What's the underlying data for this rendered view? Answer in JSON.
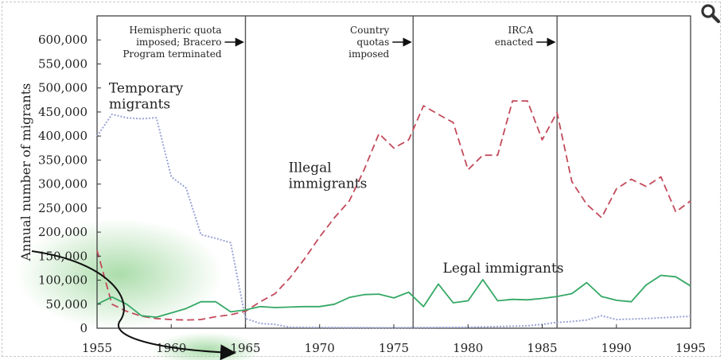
{
  "chart_data": {
    "type": "line",
    "title": "",
    "xlabel": "",
    "ylabel": "Annual number of migrants",
    "xlim": [
      1955,
      1995
    ],
    "ylim": [
      0,
      650000
    ],
    "x_ticks": [
      1955,
      1960,
      1965,
      1970,
      1975,
      1980,
      1985,
      1990,
      1995
    ],
    "y_ticks": [
      0,
      50000,
      100000,
      150000,
      200000,
      250000,
      300000,
      350000,
      400000,
      450000,
      500000,
      550000,
      600000
    ],
    "y_tick_labels": [
      "0",
      "50,000",
      "100,000",
      "150,000",
      "200,000",
      "250,000",
      "300,000",
      "350,000",
      "400,000",
      "450,000",
      "500,000",
      "550,000",
      "600,000"
    ],
    "grid": false,
    "series": [
      {
        "name": "Temporary migrants",
        "style": "dotted",
        "color": "#9aa3d6",
        "x": [
          1955,
          1956,
          1957,
          1958,
          1959,
          1960,
          1961,
          1962,
          1963,
          1964,
          1965,
          1966,
          1967,
          1968,
          1970,
          1975,
          1980,
          1984,
          1985,
          1986,
          1987,
          1988,
          1989,
          1990,
          1992,
          1995
        ],
        "y": [
          400000,
          445000,
          438000,
          436000,
          438000,
          315000,
          292000,
          195000,
          187000,
          178000,
          20000,
          10000,
          8000,
          2000,
          1500,
          1000,
          2000,
          5000,
          8000,
          12000,
          14000,
          17000,
          26000,
          18000,
          20000,
          25000
        ]
      },
      {
        "name": "Illegal immigrants",
        "style": "dashed",
        "color": "#c24a5a",
        "x": [
          1955,
          1956,
          1957,
          1958,
          1959,
          1960,
          1961,
          1962,
          1963,
          1964,
          1965,
          1966,
          1967,
          1968,
          1969,
          1970,
          1971,
          1972,
          1973,
          1974,
          1975,
          1976,
          1977,
          1978,
          1979,
          1980,
          1981,
          1982,
          1983,
          1984,
          1985,
          1986,
          1987,
          1988,
          1989,
          1990,
          1991,
          1992,
          1993,
          1994,
          1995
        ],
        "y": [
          162000,
          50000,
          35000,
          25000,
          20000,
          18000,
          17000,
          18000,
          24000,
          28000,
          35000,
          55000,
          72000,
          105000,
          145000,
          190000,
          230000,
          265000,
          330000,
          405000,
          375000,
          392000,
          463000,
          445000,
          428000,
          330000,
          360000,
          360000,
          473000,
          473000,
          392000,
          449000,
          305000,
          258000,
          230000,
          290000,
          310000,
          295000,
          315000,
          242000,
          265000
        ]
      },
      {
        "name": "Legal immigrants",
        "style": "solid",
        "color": "#35a865",
        "x": [
          1955,
          1956,
          1957,
          1958,
          1959,
          1960,
          1961,
          1962,
          1963,
          1964,
          1965,
          1966,
          1967,
          1968,
          1969,
          1970,
          1971,
          1972,
          1973,
          1974,
          1975,
          1976,
          1977,
          1978,
          1979,
          1980,
          1981,
          1982,
          1983,
          1984,
          1985,
          1986,
          1987,
          1988,
          1989,
          1990,
          1991,
          1992,
          1993,
          1994,
          1995
        ],
        "y": [
          50000,
          65000,
          50000,
          26000,
          23000,
          32000,
          41000,
          55000,
          55000,
          34000,
          38000,
          45000,
          43000,
          44000,
          45000,
          45000,
          50000,
          64000,
          70000,
          71000,
          63000,
          75000,
          45000,
          92000,
          53000,
          57000,
          101000,
          57000,
          60000,
          59000,
          62000,
          66000,
          72000,
          95000,
          66000,
          58000,
          55000,
          90000,
          110000,
          107000,
          88000
        ]
      }
    ],
    "series_labels": [
      {
        "lines": [
          "Temporary",
          "migrants"
        ],
        "x": 1955.8,
        "y": 490000
      },
      {
        "lines": [
          "Illegal",
          "immigrants"
        ],
        "x": 1967.9,
        "y": 325000
      },
      {
        "lines": [
          "Legal immigrants"
        ],
        "x": 1978.3,
        "y": 116000
      }
    ],
    "events": [
      {
        "x": 1965,
        "lines": [
          "Hemispheric quota",
          "imposed; Bracero",
          "Program terminated"
        ],
        "arrow_line": 1
      },
      {
        "x": 1976.3,
        "lines": [
          "Country",
          "quotas",
          "imposed"
        ],
        "arrow_line": 1
      },
      {
        "x": 1986,
        "lines": [
          "IRCA",
          "enacted"
        ],
        "arrow_line": 1
      }
    ]
  },
  "toolbar": {
    "zoom_icon": "magnifier-icon"
  }
}
